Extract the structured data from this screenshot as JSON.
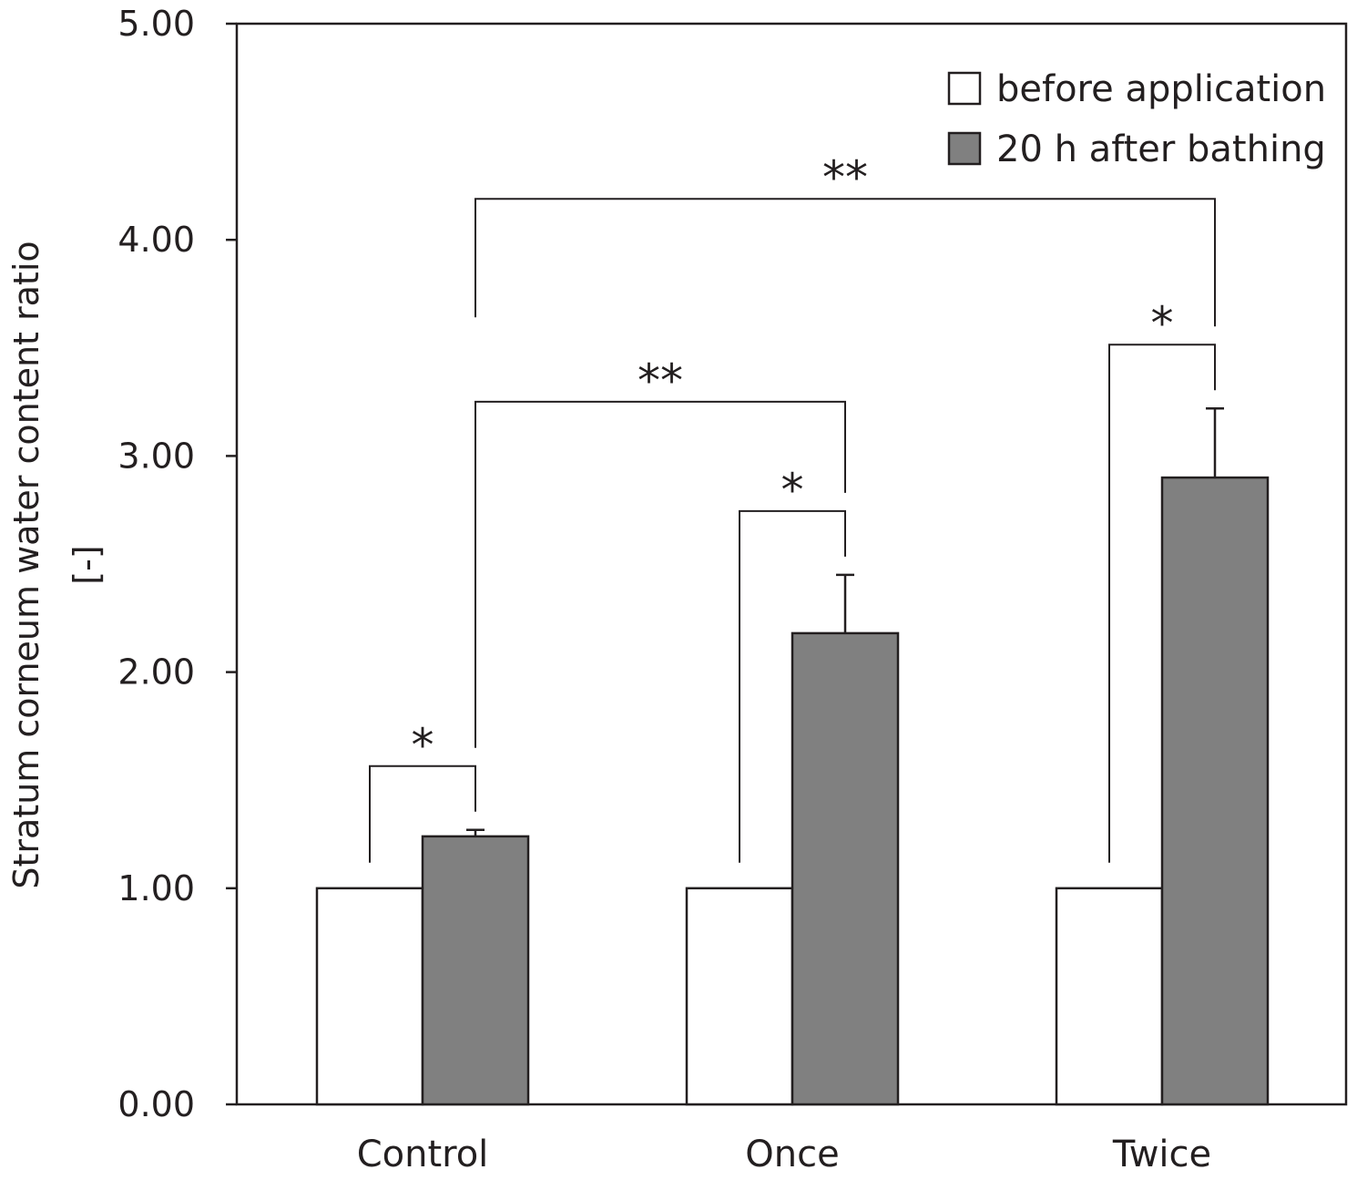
{
  "chart_data": {
    "type": "bar",
    "ylabel_line1": "Stratum corneum water content ratio",
    "ylabel_line2": "[-]",
    "xlabel": "",
    "ylim": [
      0,
      5
    ],
    "yticks": [
      0,
      1,
      2,
      3,
      4,
      5
    ],
    "ytick_labels": [
      "0.00",
      "1.00",
      "2.00",
      "3.00",
      "4.00",
      "5.00"
    ],
    "categories": [
      "Control",
      "Once",
      "Twice"
    ],
    "series": [
      {
        "name": "before application",
        "values": [
          1.0,
          1.0,
          1.0
        ],
        "errors": [
          0,
          0,
          0
        ],
        "color": "#ffffff"
      },
      {
        "name": "20 h after bathing",
        "values": [
          1.24,
          2.18,
          2.9
        ],
        "errors": [
          0.03,
          0.27,
          0.32
        ],
        "color": "#808080"
      }
    ],
    "legend_position": "top-right",
    "significance": [
      {
        "label": "*",
        "category": "Control"
      },
      {
        "label": "*",
        "category": "Once"
      },
      {
        "label": "*",
        "category": "Twice"
      },
      {
        "label": "**",
        "from": "Control",
        "to": "Once"
      },
      {
        "label": "**",
        "from": "Control",
        "to": "Twice"
      }
    ],
    "grid": false
  }
}
